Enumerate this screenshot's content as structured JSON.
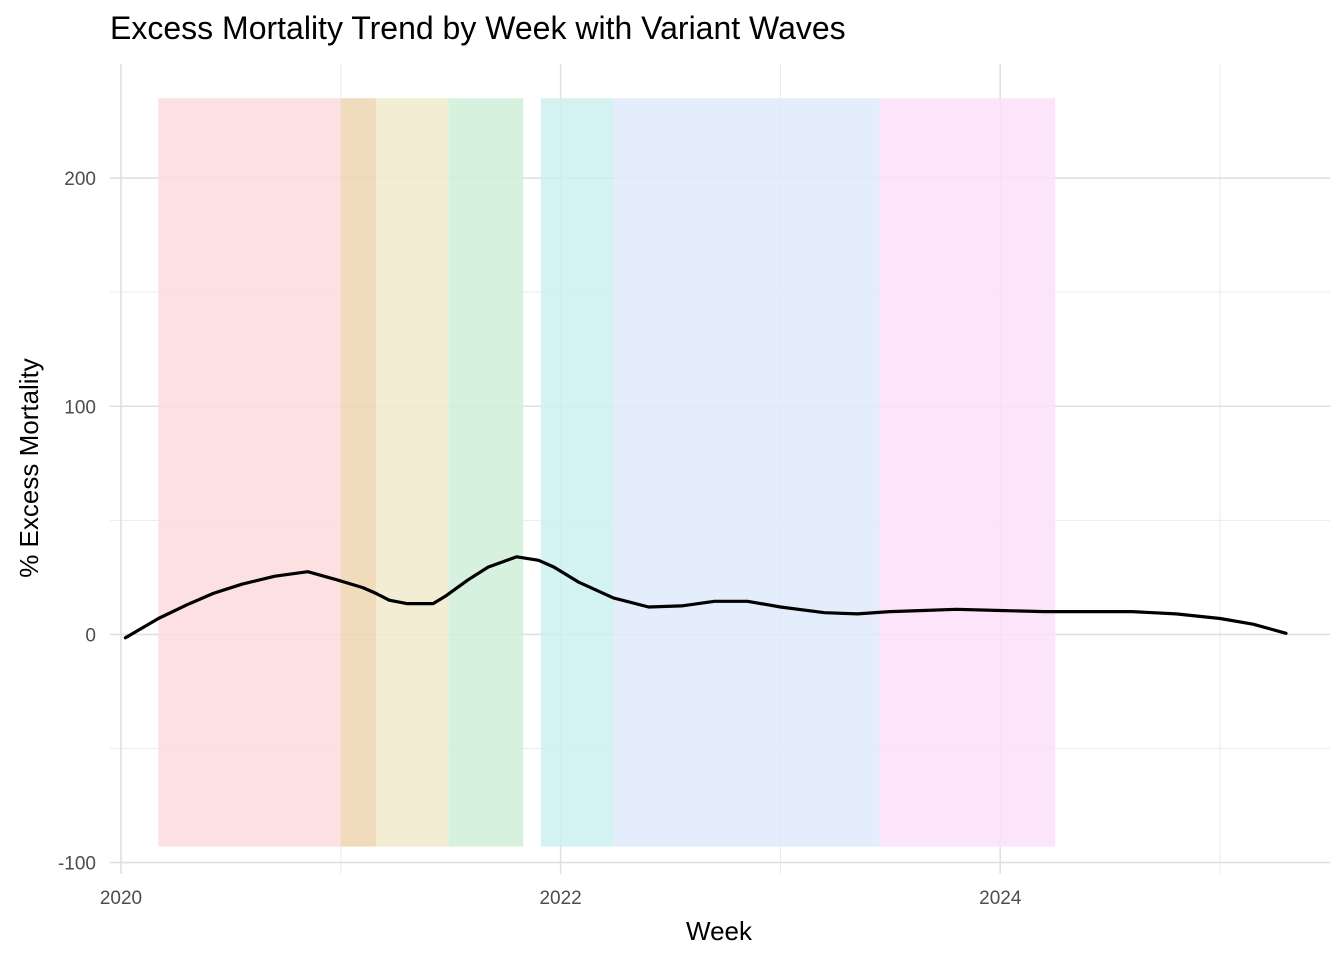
{
  "chart_data": {
    "type": "line",
    "title": "Excess Mortality Trend by Week with Variant Waves",
    "xlabel": "Week",
    "ylabel": "% Excess Mortality",
    "xlim": [
      2019.95,
      2025.5
    ],
    "ylim": [
      -105,
      250
    ],
    "x_ticks": [
      2020,
      2022,
      2024
    ],
    "x_minor_ticks": [
      2021,
      2023,
      2025
    ],
    "y_ticks": [
      -100,
      0,
      100,
      200
    ],
    "y_minor_ticks": [
      -50,
      50,
      150
    ],
    "grid": true,
    "line_color": "#000000",
    "bands": [
      {
        "start": 2020.17,
        "end": 2021.0,
        "ymin": -93,
        "ymax": 235,
        "color": "#fddcdd"
      },
      {
        "start": 2021.0,
        "end": 2021.16,
        "ymin": -93,
        "ymax": 235,
        "color": "#efd5b1"
      },
      {
        "start": 2021.16,
        "end": 2021.49,
        "ymin": -93,
        "ymax": 235,
        "color": "#f1ebcb"
      },
      {
        "start": 2021.49,
        "end": 2021.83,
        "ymin": -93,
        "ymax": 235,
        "color": "#cff0d9"
      },
      {
        "start": 2021.91,
        "end": 2022.24,
        "ymin": -93,
        "ymax": 235,
        "color": "#cdf0f0"
      },
      {
        "start": 2022.24,
        "end": 2023.45,
        "ymin": -93,
        "ymax": 235,
        "color": "#deeafc"
      },
      {
        "start": 2023.45,
        "end": 2024.25,
        "ymin": -93,
        "ymax": 235,
        "color": "#fce0f9"
      }
    ],
    "series": [
      {
        "x": [
          2020.02,
          2020.17,
          2020.3,
          2020.42,
          2020.55,
          2020.7,
          2020.85,
          2020.98,
          2021.1,
          2021.16,
          2021.22,
          2021.3,
          2021.42,
          2021.48,
          2021.58,
          2021.67,
          2021.8,
          2021.9,
          2021.97,
          2022.08,
          2022.24,
          2022.4,
          2022.55,
          2022.7,
          2022.85,
          2023.0,
          2023.2,
          2023.35,
          2023.5,
          2023.65,
          2023.8,
          2024.0,
          2024.2,
          2024.4,
          2024.6,
          2024.8,
          2025.0,
          2025.15,
          2025.3
        ],
        "y": [
          -1.5,
          7,
          13,
          18,
          22,
          25.5,
          27.5,
          24,
          20.5,
          18,
          15,
          13.5,
          13.5,
          17,
          24,
          29.5,
          34,
          32.5,
          29.5,
          23,
          16,
          12,
          12.5,
          14.5,
          14.5,
          12,
          9.5,
          9,
          10,
          10.5,
          11,
          10.5,
          10,
          10,
          10,
          9,
          7,
          4.5,
          0.5
        ]
      }
    ]
  }
}
